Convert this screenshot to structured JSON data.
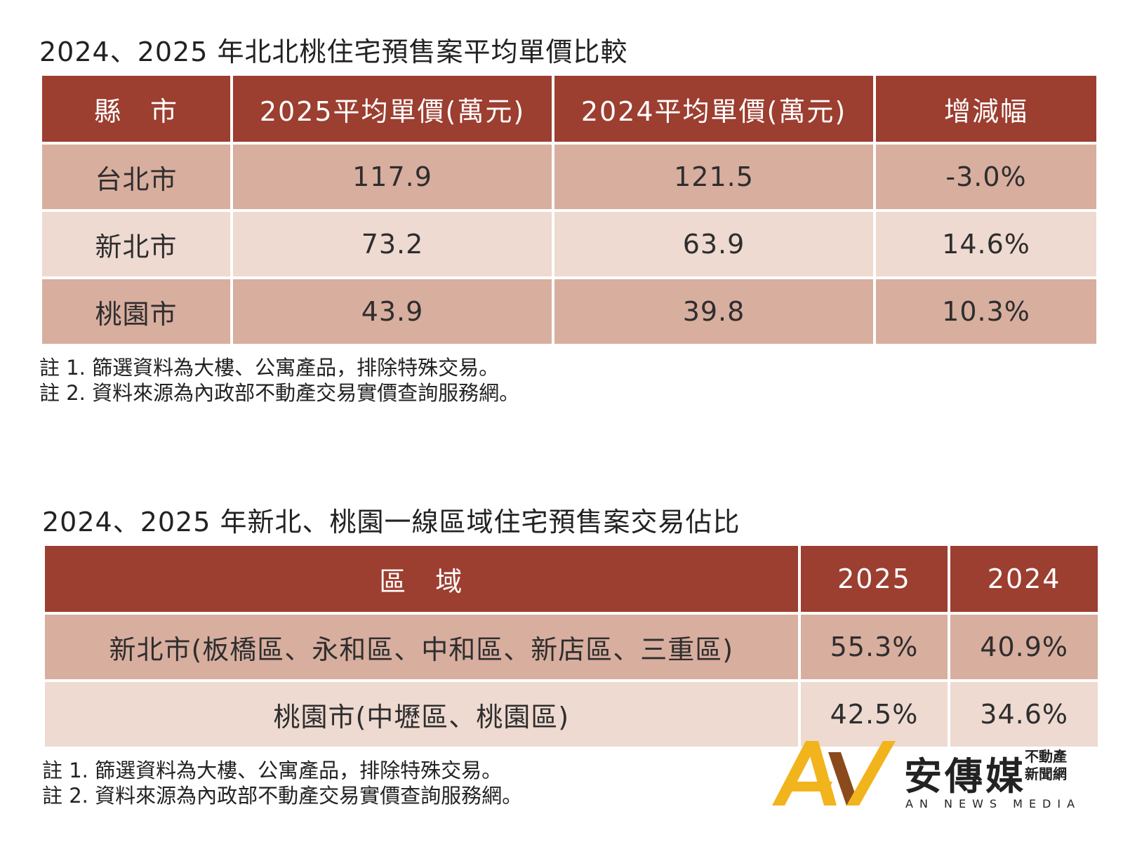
{
  "table1": {
    "title": "2024、2025 年北北桃住宅預售案平均單價比較",
    "headers": [
      "縣　市",
      "2025平均單價(萬元)",
      "2024平均單價(萬元)",
      "增減幅"
    ],
    "rows": [
      {
        "city": "台北市",
        "y2025": "117.9",
        "y2024": "121.5",
        "change": "-3.0%"
      },
      {
        "city": "新北市",
        "y2025": "73.2",
        "y2024": "63.9",
        "change": "14.6%"
      },
      {
        "city": "桃園市",
        "y2025": "43.9",
        "y2024": "39.8",
        "change": "10.3%"
      }
    ],
    "notes": [
      "註 1. 篩選資料為大樓、公寓產品，排除特殊交易。",
      "註 2. 資料來源為內政部不動產交易實價查詢服務網。"
    ]
  },
  "table2": {
    "title": "2024、2025 年新北、桃園一線區域住宅預售案交易佔比",
    "headers": [
      "區　域",
      "2025",
      "2024"
    ],
    "rows": [
      {
        "region": "新北市(板橋區、永和區、中和區、新店區、三重區)",
        "y2025": "55.3%",
        "y2024": "40.9%"
      },
      {
        "region": "桃園市(中壢區、桃園區)",
        "y2025": "42.5%",
        "y2024": "34.6%"
      }
    ],
    "notes": [
      "註 1. 篩選資料為大樓、公寓產品，排除特殊交易。",
      "註 2. 資料來源為內政部不動產交易實價查詢服務網。"
    ]
  },
  "logo": {
    "name_cn": "安傳媒",
    "tag_line1": "不動產",
    "tag_line2": "新聞網",
    "name_en": "AN NEWS MEDIA",
    "colors": {
      "gold": "#f2b41c",
      "brown": "#8a4a1c"
    }
  },
  "colors": {
    "header": "#9c3e30",
    "row_dark": "#d8ae9f",
    "row_light": "#eedad1"
  }
}
